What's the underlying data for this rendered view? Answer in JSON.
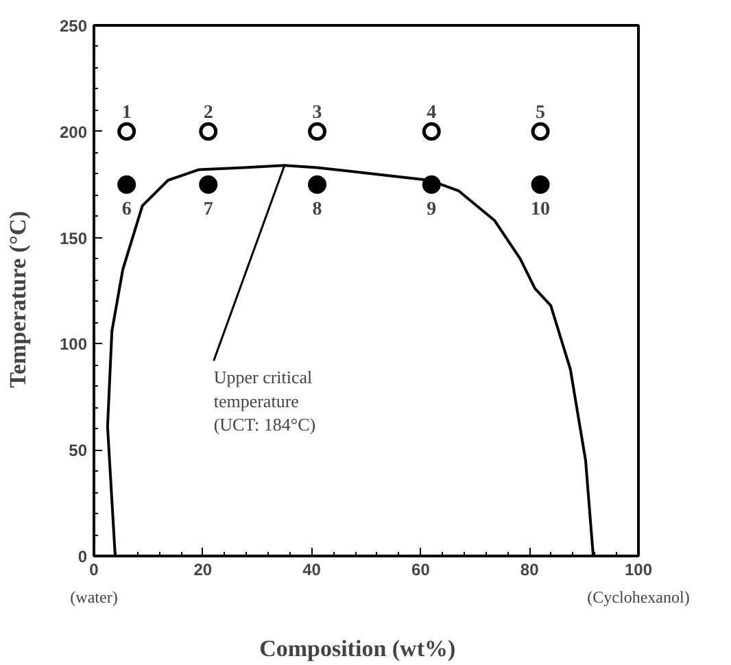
{
  "chart_data": {
    "type": "scatter",
    "xlabel": "Composition    (wt%)",
    "ylabel": "Temperature    (°C)",
    "xlim": [
      0,
      100
    ],
    "ylim": [
      0,
      250
    ],
    "xticks": [
      0,
      20,
      40,
      60,
      80,
      100
    ],
    "yticks": [
      0,
      50,
      100,
      150,
      200,
      250
    ],
    "grid": false,
    "series": [
      {
        "type": "line",
        "color": "#000000",
        "marker": "none",
        "x": [
          3.9,
          2.5,
          3.3,
          5.3,
          8.9,
          13.6,
          19.2,
          27.5,
          35,
          41,
          61.7,
          67,
          73.6,
          78.3,
          81,
          83.9,
          87.5,
          90.3,
          91.7
        ],
        "values": [
          0,
          61,
          106,
          135,
          165,
          177,
          182,
          183,
          184,
          183,
          177,
          172,
          158,
          140,
          126,
          118,
          88,
          45,
          0
        ]
      },
      {
        "color": "#ffffff",
        "marker": "circle",
        "x": [
          6,
          21,
          41,
          62,
          82
        ],
        "values": [
          200,
          200,
          200,
          200,
          200
        ]
      },
      {
        "color": "#000000",
        "marker": "circle",
        "x": [
          6,
          21,
          41,
          62,
          82
        ],
        "values": [
          175,
          175,
          175,
          175,
          175
        ]
      }
    ],
    "annotations": [
      {
        "text": "1",
        "x": 6,
        "y": 200
      },
      {
        "text": "2",
        "x": 21,
        "y": 200
      },
      {
        "text": "3",
        "x": 41,
        "y": 200
      },
      {
        "text": "4",
        "x": 62,
        "y": 200
      },
      {
        "text": "5",
        "x": 82,
        "y": 200
      },
      {
        "text": "6",
        "x": 6,
        "y": 175
      },
      {
        "text": "7",
        "x": 21,
        "y": 175
      },
      {
        "text": "8",
        "x": 41,
        "y": 175
      },
      {
        "text": "9",
        "x": 62,
        "y": 175
      },
      {
        "text": "10",
        "x": 82,
        "y": 175
      },
      {
        "text": "Upper critical\ntemperature\n(UCT: 184°C)",
        "x": 35,
        "y": 184
      },
      "(water)",
      "(Cyclohexanol)"
    ]
  }
}
